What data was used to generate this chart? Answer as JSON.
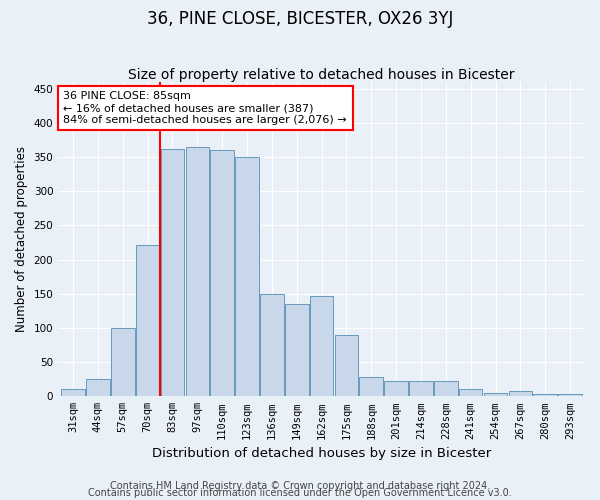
{
  "title": "36, PINE CLOSE, BICESTER, OX26 3YJ",
  "subtitle": "Size of property relative to detached houses in Bicester",
  "xlabel": "Distribution of detached houses by size in Bicester",
  "ylabel": "Number of detached properties",
  "categories": [
    "31sqm",
    "44sqm",
    "57sqm",
    "70sqm",
    "83sqm",
    "97sqm",
    "110sqm",
    "123sqm",
    "136sqm",
    "149sqm",
    "162sqm",
    "175sqm",
    "188sqm",
    "201sqm",
    "214sqm",
    "228sqm",
    "241sqm",
    "254sqm",
    "267sqm",
    "280sqm",
    "293sqm"
  ],
  "values": [
    10,
    25,
    100,
    222,
    362,
    365,
    360,
    350,
    150,
    135,
    147,
    90,
    28,
    22,
    22,
    22,
    10,
    5,
    8,
    3,
    3
  ],
  "bar_color": "#c8d8ea",
  "bar_edge_color": "#6699bb",
  "vline_x": 3.5,
  "vline_color": "red",
  "annotation_text": "36 PINE CLOSE: 85sqm\n← 16% of detached houses are smaller (387)\n84% of semi-detached houses are larger (2,076) →",
  "annotation_box_facecolor": "white",
  "annotation_box_edgecolor": "red",
  "ylim": [
    0,
    460
  ],
  "yticks": [
    0,
    50,
    100,
    150,
    200,
    250,
    300,
    350,
    400,
    450
  ],
  "background_color": "#eaf0f8",
  "grid_color": "white",
  "footnote1": "Contains HM Land Registry data © Crown copyright and database right 2024.",
  "footnote2": "Contains public sector information licensed under the Open Government Licence v3.0.",
  "title_fontsize": 12,
  "subtitle_fontsize": 10,
  "xlabel_fontsize": 9.5,
  "ylabel_fontsize": 8.5,
  "tick_fontsize": 7.5,
  "annotation_fontsize": 8,
  "footnote_fontsize": 7
}
